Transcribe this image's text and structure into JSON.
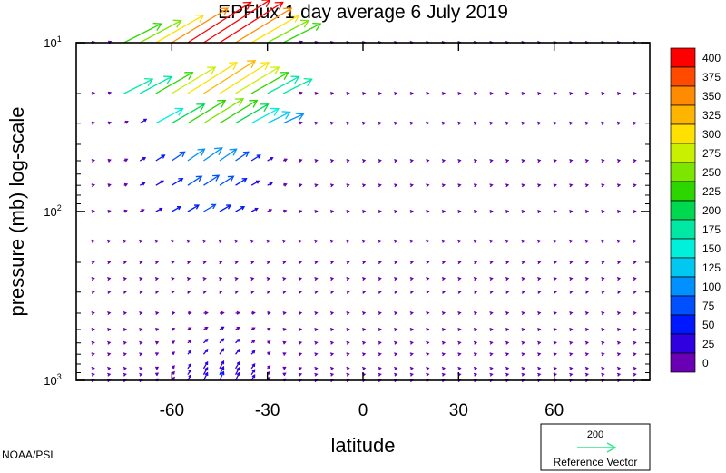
{
  "chart_data": {
    "type": "vector field",
    "title": "EPFlux  1 day average  6 July      2019",
    "xlabel": "latitude",
    "ylabel": "pressure (mb)  log-scale",
    "xlim": [
      -90,
      90
    ],
    "ylim_mb": [
      1000,
      10
    ],
    "y_scale": "log",
    "x_ticks": [
      -60,
      -30,
      0,
      30,
      60
    ],
    "x_tick_labels": [
      "-60",
      "-30",
      "0",
      "30",
      "60"
    ],
    "y_ticks": [
      {
        "value": 10,
        "base": "10",
        "exp": "1"
      },
      {
        "value": 100,
        "base": "10",
        "exp": "2"
      },
      {
        "value": 1000,
        "base": "10",
        "exp": "3"
      }
    ],
    "pressure_levels": [
      1000,
      925,
      850,
      700,
      600,
      500,
      400,
      300,
      250,
      200,
      150,
      100,
      70,
      50,
      30,
      20,
      10
    ],
    "latitude_spacing": 5,
    "arrow_colors_by_magnitude": "blue for near-zero, cyan/teal for ~100-175, green ~200-275, yellow/orange ~300-375, red >=400",
    "strong_flux_region": {
      "lat_range": [
        -75,
        -25
      ],
      "pressure_range_mb": [
        10,
        50
      ],
      "max_magnitude": 400,
      "description": "red/orange arrows pointing equatorward-upward near 10-20 mb"
    },
    "colorbar": {
      "levels": [
        "400",
        "375",
        "350",
        "325",
        "300",
        "275",
        "250",
        "225",
        "200",
        "175",
        "150",
        "125",
        "100",
        "75",
        "50",
        "25",
        "0"
      ],
      "colors": [
        "#ff0000",
        "#ff4a00",
        "#ff8c00",
        "#ffb400",
        "#ffe000",
        "#c8f000",
        "#7ce600",
        "#2ed600",
        "#00d850",
        "#00e8a4",
        "#00f0dc",
        "#00c8f0",
        "#0090ff",
        "#0050ff",
        "#0018ff",
        "#3000e0",
        "#6a00b4"
      ]
    },
    "reference_vector": {
      "value": "200",
      "label": "Reference Vector",
      "color": "#2ee88a"
    }
  },
  "credit": "NOAA/PSL"
}
